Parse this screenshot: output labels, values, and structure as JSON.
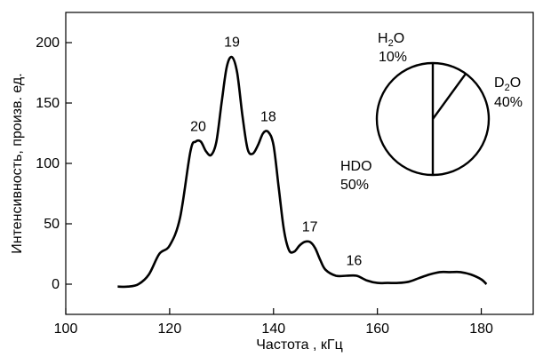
{
  "chart_data": [
    {
      "type": "line",
      "xlabel": "Частота , кГц",
      "ylabel": "Интенсивность, произв. ед.",
      "xlim": [
        100,
        190
      ],
      "ylim": [
        -25,
        225
      ],
      "xticks": [
        100,
        120,
        140,
        160,
        180
      ],
      "yticks": [
        0,
        50,
        100,
        150,
        200
      ],
      "grid": false,
      "series": [
        {
          "x": [
            110,
            112,
            114,
            116,
            118,
            120,
            122,
            124,
            125,
            126,
            127,
            128,
            129,
            130,
            131,
            132,
            133,
            134,
            135,
            136,
            137,
            138,
            139,
            140,
            141,
            142,
            143,
            144,
            145,
            146,
            147,
            148,
            149,
            150,
            152,
            154,
            156,
            158,
            160,
            162,
            164,
            166,
            168,
            170,
            172,
            174,
            176,
            178,
            180,
            181
          ],
          "y": [
            -2,
            -2,
            0,
            8,
            25,
            32,
            55,
            110,
            118,
            118,
            110,
            107,
            118,
            150,
            180,
            188,
            175,
            140,
            112,
            108,
            115,
            125,
            126,
            115,
            80,
            45,
            28,
            27,
            32,
            35,
            35,
            30,
            20,
            12,
            7,
            7,
            7,
            3,
            1,
            1,
            1,
            2,
            5,
            8,
            10,
            10,
            10,
            8,
            4,
            0
          ]
        }
      ],
      "annotations": [
        {
          "text": "20",
          "x": 125.5,
          "y": 118
        },
        {
          "text": "19",
          "x": 132,
          "y": 188
        },
        {
          "text": "18",
          "x": 139,
          "y": 126
        },
        {
          "text": "17",
          "x": 147,
          "y": 35
        },
        {
          "text": "16",
          "x": 155.5,
          "y": 7
        }
      ]
    },
    {
      "type": "pie",
      "slices": [
        {
          "name": "H",
          "sub": "2",
          "tail": "O",
          "value": 10,
          "pct_label": "10%"
        },
        {
          "name": "D",
          "sub": "2",
          "tail": "O",
          "value": 40,
          "pct_label": "40%"
        },
        {
          "name": "HDO",
          "sub": "",
          "tail": "",
          "value": 50,
          "pct_label": "50%"
        }
      ]
    }
  ]
}
